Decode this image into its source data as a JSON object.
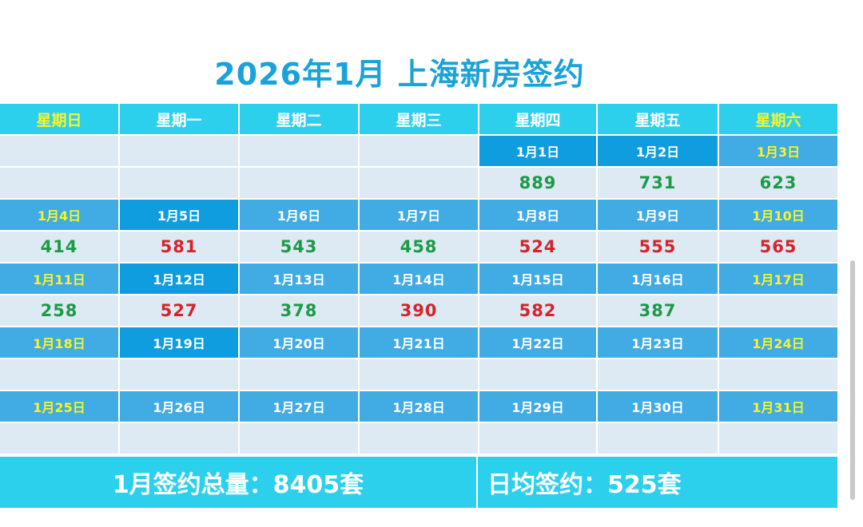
{
  "title": "2026年1月 上海新房签约",
  "weekdays": [
    "星期日",
    "星期一",
    "星期二",
    "星期三",
    "星期四",
    "星期五",
    "星期六"
  ],
  "weeks": [
    {
      "dates": [
        "",
        "",
        "",
        "",
        "1月1日",
        "1月2日",
        "1月3日"
      ],
      "values": [
        "",
        "",
        "",
        "",
        "889",
        "731",
        "623"
      ]
    },
    {
      "dates": [
        "1月4日",
        "1月5日",
        "1月6日",
        "1月7日",
        "1月8日",
        "1月9日",
        "1月10日"
      ],
      "values": [
        "414",
        "581",
        "543",
        "458",
        "524",
        "555",
        "565"
      ]
    },
    {
      "dates": [
        "1月11日",
        "1月12日",
        "1月13日",
        "1月14日",
        "1月15日",
        "1月16日",
        "1月17日"
      ],
      "values": [
        "258",
        "527",
        "378",
        "390",
        "582",
        "387",
        ""
      ]
    },
    {
      "dates": [
        "1月18日",
        "1月19日",
        "1月20日",
        "1月21日",
        "1月22日",
        "1月23日",
        "1月24日"
      ],
      "values": [
        "",
        "",
        "",
        "",
        "",
        "",
        ""
      ]
    },
    {
      "dates": [
        "1月25日",
        "1月26日",
        "1月27日",
        "1月28日",
        "1月29日",
        "1月30日",
        "1月31日"
      ],
      "values": [
        "",
        "",
        "",
        "",
        "",
        "",
        ""
      ]
    }
  ],
  "value_colors": {
    "up": "#d4242b",
    "down": "#1c9a46"
  },
  "value_trend": [
    [
      "",
      "",
      "",
      "",
      "down",
      "down",
      "down"
    ],
    [
      "down",
      "up",
      "down",
      "down",
      "up",
      "up",
      "up"
    ],
    [
      "down",
      "up",
      "down",
      "up",
      "up",
      "down",
      ""
    ]
  ],
  "footer": {
    "total": "1月签约总量：8405套",
    "daily_avg": "日均签约：525套"
  }
}
